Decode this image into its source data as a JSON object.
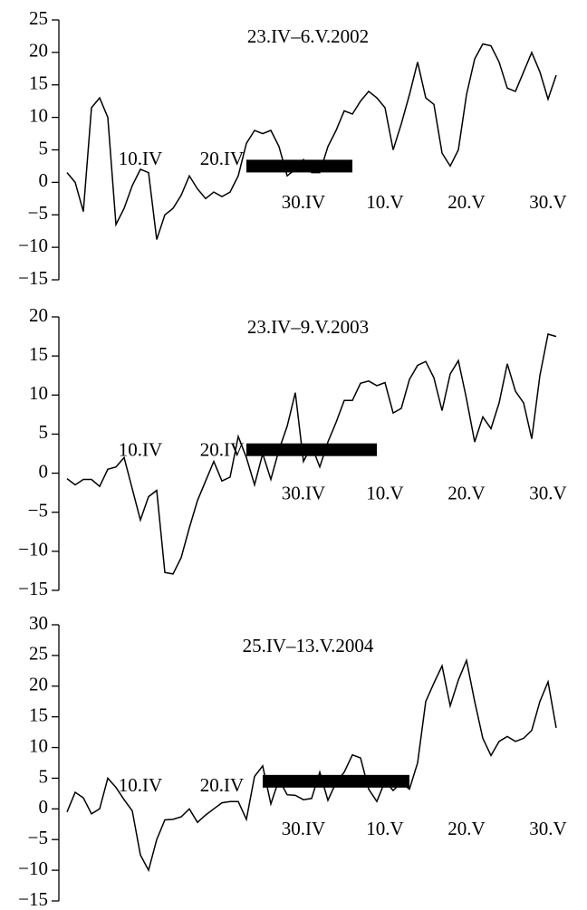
{
  "chart_data": [
    {
      "type": "line",
      "title": "23.IV–6.V.2002",
      "color": "#000000",
      "x": [
        1,
        2,
        3,
        4,
        5,
        6,
        7,
        8,
        9,
        10,
        11,
        12,
        13,
        14,
        15,
        16,
        17,
        18,
        19,
        20,
        21,
        22,
        23,
        24,
        25,
        26,
        27,
        28,
        29,
        30,
        31,
        32,
        33,
        34,
        35,
        36,
        37,
        38,
        39,
        40,
        41,
        42,
        43,
        44,
        45,
        46,
        47,
        48,
        49,
        50,
        51,
        52,
        53,
        54,
        55,
        56,
        57,
        58,
        59,
        60,
        61
      ],
      "values": [
        1.5,
        0,
        -4.5,
        11.5,
        13,
        10,
        -6.5,
        -4,
        -0.5,
        2,
        1.5,
        -8.8,
        -5,
        -4,
        -2,
        1,
        -1,
        -2.5,
        -1.5,
        -2.2,
        -1.5,
        1,
        6,
        8,
        7.5,
        8,
        5.5,
        1,
        2,
        3.5,
        1.5,
        1.5,
        5.5,
        8,
        11,
        10.5,
        12.5,
        14,
        13,
        11.5,
        5,
        9,
        13.5,
        18.5,
        13,
        12,
        4.5,
        2.5,
        5,
        13.5,
        19,
        21.3,
        21,
        18.5,
        14.5,
        14,
        17,
        20,
        17,
        12.8,
        16.5
      ],
      "period": {
        "start": 23,
        "end": 36,
        "y": 2.5
      },
      "xlim": [
        0,
        62
      ],
      "ylim": [
        -15,
        25
      ],
      "xticks": [
        {
          "value": 10,
          "label": "10.IV"
        },
        {
          "value": 20,
          "label": "20.IV"
        },
        {
          "value": 30,
          "label": "30.IV"
        },
        {
          "value": 40,
          "label": "10.V"
        },
        {
          "value": 50,
          "label": "20.V"
        },
        {
          "value": 60,
          "label": "30.V"
        }
      ],
      "yticks": [
        {
          "value": -15,
          "label": "−15"
        },
        {
          "value": -10,
          "label": "−10"
        },
        {
          "value": -5,
          "label": "−5"
        },
        0,
        5,
        10,
        15,
        20,
        25
      ]
    },
    {
      "type": "line",
      "title": "23.IV–9.V.2003",
      "color": "#000000",
      "x": [
        1,
        2,
        3,
        4,
        5,
        6,
        7,
        8,
        9,
        10,
        11,
        12,
        13,
        14,
        15,
        16,
        17,
        18,
        19,
        20,
        21,
        22,
        23,
        24,
        25,
        26,
        27,
        28,
        29,
        30,
        31,
        32,
        33,
        34,
        35,
        36,
        37,
        38,
        39,
        40,
        41,
        42,
        43,
        44,
        45,
        46,
        47,
        48,
        49,
        50,
        51,
        52,
        53,
        54,
        55,
        56,
        57,
        58,
        59,
        60,
        61
      ],
      "values": [
        -0.7,
        -1.5,
        -0.8,
        -0.8,
        -1.7,
        0.5,
        0.8,
        2,
        -2,
        -6,
        -3,
        -2.2,
        -12.7,
        -12.9,
        -10.8,
        -7,
        -3.5,
        -1,
        1.5,
        -1,
        -0.5,
        4.7,
        2,
        -1.5,
        2.5,
        -0.8,
        3,
        6,
        10.3,
        1.5,
        3.5,
        0.8,
        4,
        6.5,
        9.3,
        9.3,
        11.5,
        11.8,
        11.2,
        11.6,
        7.7,
        8.3,
        12,
        13.8,
        14.3,
        12.2,
        8,
        12.7,
        14.4,
        9.5,
        4,
        7.2,
        5.7,
        9,
        14,
        10.5,
        9,
        4.4,
        12.5,
        17.8,
        17.5
      ],
      "period": {
        "start": 23,
        "end": 39,
        "y": 3
      },
      "xlim": [
        0,
        62
      ],
      "ylim": [
        -15,
        20
      ],
      "xticks": [
        {
          "value": 10,
          "label": "10.IV"
        },
        {
          "value": 20,
          "label": "20.IV"
        },
        {
          "value": 30,
          "label": "30.IV"
        },
        {
          "value": 40,
          "label": "10.V"
        },
        {
          "value": 50,
          "label": "20.V"
        },
        {
          "value": 60,
          "label": "30.V"
        }
      ],
      "yticks": [
        {
          "value": -15,
          "label": "−15"
        },
        {
          "value": -10,
          "label": "−10"
        },
        {
          "value": -5,
          "label": "−5"
        },
        0,
        5,
        10,
        15,
        20
      ]
    },
    {
      "type": "line",
      "title": "25.IV–13.V.2004",
      "color": "#000000",
      "x": [
        1,
        2,
        3,
        4,
        5,
        6,
        7,
        8,
        9,
        10,
        11,
        12,
        13,
        14,
        15,
        16,
        17,
        18,
        19,
        20,
        21,
        22,
        23,
        24,
        25,
        26,
        27,
        28,
        29,
        30,
        31,
        32,
        33,
        34,
        35,
        36,
        37,
        38,
        39,
        40,
        41,
        42,
        43,
        44,
        45,
        46,
        47,
        48,
        49,
        50,
        51,
        52,
        53,
        54,
        55,
        56,
        57,
        58,
        59,
        60,
        61
      ],
      "values": [
        -0.5,
        2.7,
        1.8,
        -0.8,
        0,
        5,
        3.5,
        1.5,
        -0.3,
        -7.5,
        -10,
        -5,
        -1.8,
        -1.7,
        -1.3,
        0,
        -2.2,
        -1,
        0,
        1,
        1.2,
        1.2,
        -1.7,
        5.3,
        7,
        0.8,
        4.8,
        2.3,
        2.2,
        1.5,
        1.7,
        6,
        1.4,
        4.3,
        6,
        8.8,
        8.3,
        3.2,
        1.2,
        4.5,
        3,
        4.3,
        3.2,
        7.5,
        17.5,
        20.5,
        23.3,
        16.8,
        21,
        24.2,
        17.5,
        11.5,
        8.7,
        11,
        11.8,
        11,
        11.5,
        12.8,
        17.5,
        20.7,
        13.2
      ],
      "period": {
        "start": 25,
        "end": 43,
        "y": 4.5
      },
      "xlim": [
        0,
        62
      ],
      "ylim": [
        -15,
        30
      ],
      "xticks": [
        {
          "value": 10,
          "label": "10.IV"
        },
        {
          "value": 20,
          "label": "20.IV"
        },
        {
          "value": 30,
          "label": "30.IV"
        },
        {
          "value": 40,
          "label": "10.V"
        },
        {
          "value": 50,
          "label": "20.V"
        },
        {
          "value": 60,
          "label": "30.V"
        }
      ],
      "yticks": [
        {
          "value": -15,
          "label": "−15"
        },
        {
          "value": -10,
          "label": "−10"
        },
        {
          "value": -5,
          "label": "−5"
        },
        0,
        5,
        10,
        15,
        20,
        25,
        30
      ]
    }
  ]
}
